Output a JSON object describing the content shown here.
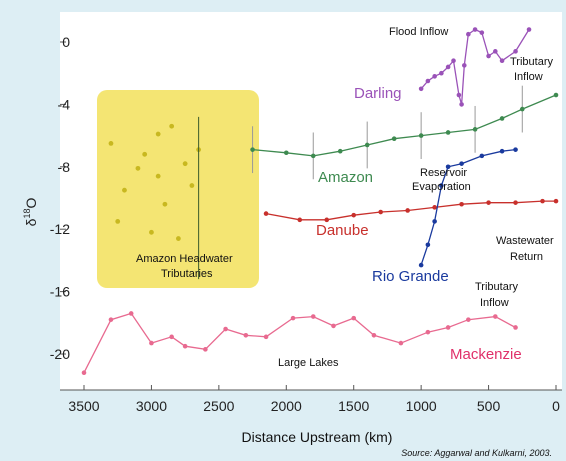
{
  "chart_data": {
    "type": "line",
    "xlabel": "Distance Upstream (km)",
    "ylabel": "δ18O",
    "ylabel_main": "δ",
    "ylabel_sup": "18",
    "ylabel_tail": "O",
    "xlim": [
      3500,
      0
    ],
    "ylim": [
      -22,
      2
    ],
    "x_reversed": true,
    "x_ticks": [
      3500,
      3000,
      2500,
      2000,
      1500,
      1000,
      500,
      0
    ],
    "y_ticks": [
      0,
      -4,
      -8,
      -12,
      -16,
      -20
    ],
    "grid": false,
    "legend": "none",
    "source": "Source: Aggarwal and Kulkarni, 2003.",
    "colors": {
      "background": "#ddeef4",
      "plot_area": "#ffffff",
      "highlight_box": "#f2e05a",
      "Amazon": "#3e8a50",
      "Danube": "#c8302c",
      "Rio Grande": "#1a3a9e",
      "Darling": "#9a52b8",
      "Mackenzie": "#e86a90",
      "Amazon Headwater Tributaries": "#c8b820"
    },
    "series": [
      {
        "name": "Amazon",
        "values_xy": [
          [
            2250,
            -6.9
          ],
          [
            2000,
            -7.1
          ],
          [
            1800,
            -7.3
          ],
          [
            1600,
            -7.0
          ],
          [
            1400,
            -6.6
          ],
          [
            1200,
            -6.2
          ],
          [
            1000,
            -6.0
          ],
          [
            800,
            -5.8
          ],
          [
            600,
            -5.6
          ],
          [
            400,
            -4.9
          ],
          [
            250,
            -4.3
          ],
          [
            0,
            -3.4
          ]
        ]
      },
      {
        "name": "Danube",
        "values_xy": [
          [
            2150,
            -11.0
          ],
          [
            1900,
            -11.4
          ],
          [
            1700,
            -11.4
          ],
          [
            1500,
            -11.1
          ],
          [
            1300,
            -10.9
          ],
          [
            1100,
            -10.8
          ],
          [
            900,
            -10.6
          ],
          [
            700,
            -10.4
          ],
          [
            500,
            -10.3
          ],
          [
            300,
            -10.3
          ],
          [
            100,
            -10.2
          ],
          [
            0,
            -10.2
          ]
        ]
      },
      {
        "name": "Rio Grande",
        "values_xy": [
          [
            1000,
            -14.3
          ],
          [
            950,
            -13.0
          ],
          [
            900,
            -11.5
          ],
          [
            850,
            -9.2
          ],
          [
            800,
            -8.0
          ],
          [
            700,
            -7.8
          ],
          [
            550,
            -7.3
          ],
          [
            400,
            -7.0
          ],
          [
            300,
            -6.9
          ]
        ]
      },
      {
        "name": "Darling",
        "values_xy": [
          [
            1000,
            -3.0
          ],
          [
            950,
            -2.5
          ],
          [
            900,
            -2.2
          ],
          [
            850,
            -2.0
          ],
          [
            800,
            -1.6
          ],
          [
            760,
            -1.2
          ],
          [
            720,
            -3.4
          ],
          [
            700,
            -4.0
          ],
          [
            680,
            -1.5
          ],
          [
            650,
            0.5
          ],
          [
            600,
            0.8
          ],
          [
            550,
            0.6
          ],
          [
            500,
            -0.9
          ],
          [
            450,
            -0.6
          ],
          [
            400,
            -1.2
          ],
          [
            300,
            -0.6
          ],
          [
            200,
            0.8
          ]
        ]
      },
      {
        "name": "Mackenzie",
        "values_xy": [
          [
            3500,
            -21.2
          ],
          [
            3300,
            -17.8
          ],
          [
            3150,
            -17.4
          ],
          [
            3000,
            -19.3
          ],
          [
            2850,
            -18.9
          ],
          [
            2750,
            -19.5
          ],
          [
            2600,
            -19.7
          ],
          [
            2450,
            -18.4
          ],
          [
            2300,
            -18.8
          ],
          [
            2150,
            -18.9
          ],
          [
            1950,
            -17.7
          ],
          [
            1800,
            -17.6
          ],
          [
            1650,
            -18.2
          ],
          [
            1500,
            -17.7
          ],
          [
            1350,
            -18.8
          ],
          [
            1150,
            -19.3
          ],
          [
            950,
            -18.6
          ],
          [
            800,
            -18.3
          ],
          [
            650,
            -17.8
          ],
          [
            450,
            -17.6
          ],
          [
            300,
            -18.3
          ]
        ]
      }
    ]
  }
}
